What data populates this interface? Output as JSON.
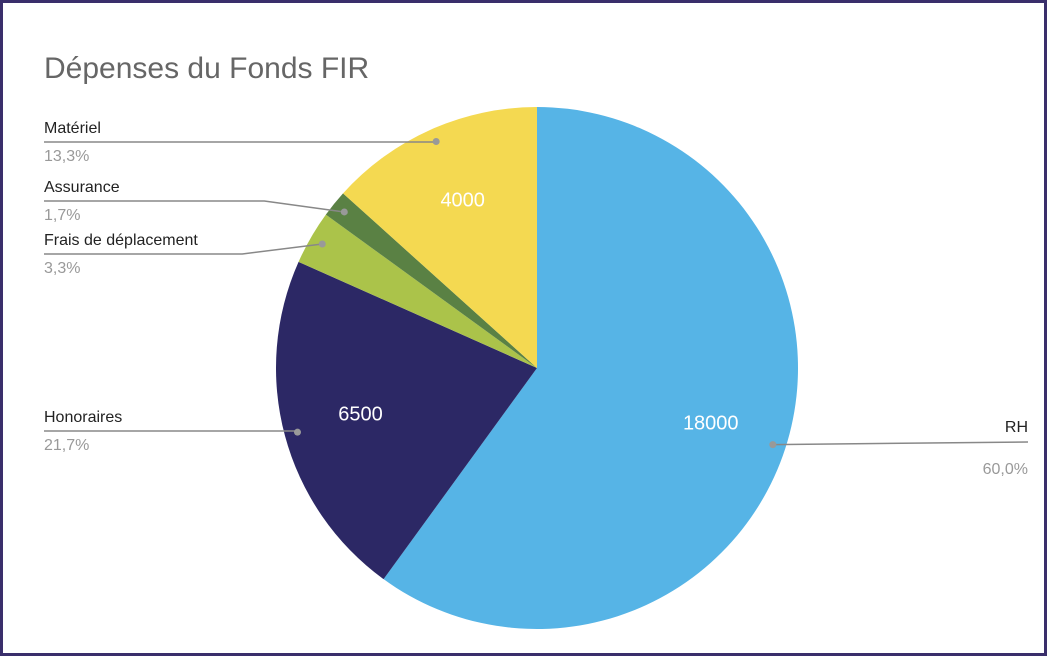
{
  "chart_data": {
    "type": "pie",
    "title": "Dépenses du Fonds FIR",
    "categories": [
      "RH",
      "Honoraires",
      "Frais de déplacement",
      "Assurance",
      "Matériel"
    ],
    "values": [
      18000,
      6500,
      1000,
      500,
      4000
    ],
    "percent_labels": [
      "60,0%",
      "21,7%",
      "3,3%",
      "1,7%",
      "13,3%"
    ],
    "colors": [
      "#56b4e6",
      "#2c2865",
      "#abc34a",
      "#5a8144",
      "#f4d951"
    ]
  }
}
